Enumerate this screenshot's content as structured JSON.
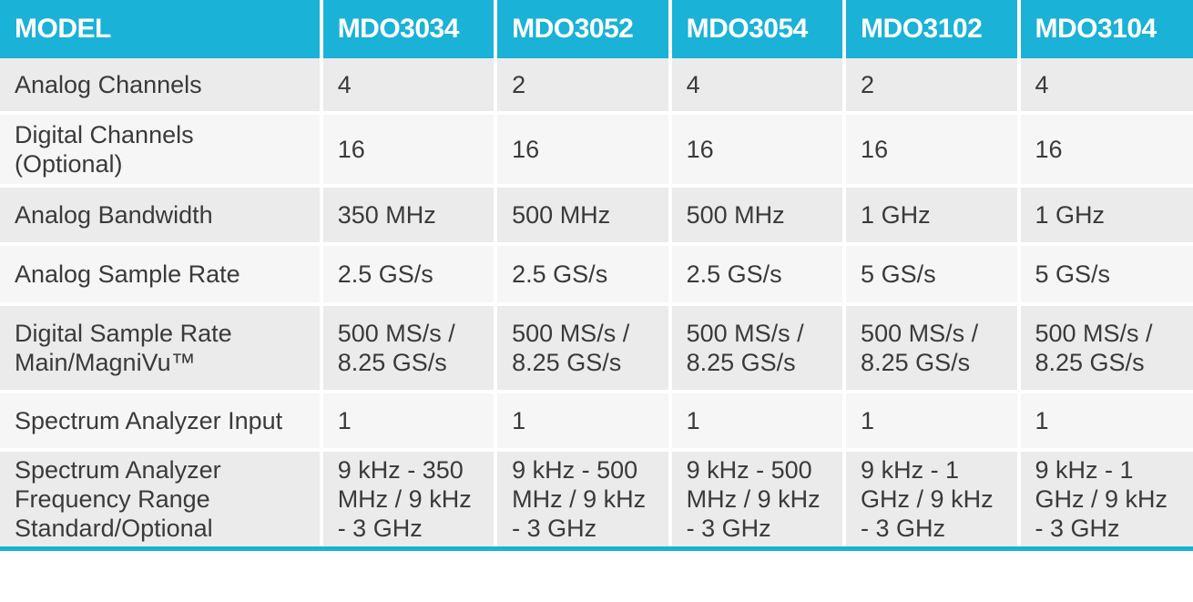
{
  "header": {
    "label": "MODEL",
    "models": [
      "MDO3034",
      "MDO3052",
      "MDO3054",
      "MDO3102",
      "MDO3104"
    ]
  },
  "rows": [
    {
      "label": [
        "Analog Channels"
      ],
      "values": [
        [
          "4"
        ],
        [
          "2"
        ],
        [
          "4"
        ],
        [
          "2"
        ],
        [
          "4"
        ]
      ]
    },
    {
      "label": [
        "Digital Channels",
        "(Optional)"
      ],
      "values": [
        [
          "16"
        ],
        [
          "16"
        ],
        [
          "16"
        ],
        [
          "16"
        ],
        [
          "16"
        ]
      ]
    },
    {
      "label": [
        "Analog Bandwidth"
      ],
      "values": [
        [
          "350 MHz"
        ],
        [
          "500 MHz"
        ],
        [
          "500 MHz"
        ],
        [
          "1 GHz"
        ],
        [
          "1 GHz"
        ]
      ]
    },
    {
      "label": [
        "Analog Sample Rate"
      ],
      "values": [
        [
          "2.5 GS/s"
        ],
        [
          "2.5 GS/s"
        ],
        [
          "2.5 GS/s"
        ],
        [
          "5 GS/s"
        ],
        [
          "5 GS/s"
        ]
      ]
    },
    {
      "label": [
        "Digital Sample Rate",
        "Main/MagniVu™"
      ],
      "values": [
        [
          "500 MS/s /",
          "8.25 GS/s"
        ],
        [
          "500 MS/s /",
          "8.25 GS/s"
        ],
        [
          "500 MS/s /",
          "8.25 GS/s"
        ],
        [
          "500 MS/s /",
          "8.25 GS/s"
        ],
        [
          "500 MS/s /",
          "8.25 GS/s"
        ]
      ]
    },
    {
      "label": [
        "Spectrum Analyzer Input"
      ],
      "values": [
        [
          "1"
        ],
        [
          "1"
        ],
        [
          "1"
        ],
        [
          "1"
        ],
        [
          "1"
        ]
      ]
    },
    {
      "label": [
        "Spectrum Analyzer",
        "Frequency Range",
        "Standard/Optional"
      ],
      "values": [
        [
          "9 kHz - 350",
          "MHz / 9 kHz",
          "- 3 GHz"
        ],
        [
          "9 kHz - 500",
          "MHz / 9 kHz",
          "- 3 GHz"
        ],
        [
          "9 kHz - 500",
          "MHz / 9 kHz",
          "- 3 GHz"
        ],
        [
          "9 kHz - 1",
          "GHz / 9 kHz",
          "- 3 GHz"
        ],
        [
          "9 kHz - 1",
          "GHz / 9 kHz",
          "- 3 GHz"
        ]
      ]
    }
  ],
  "colors": {
    "header_bg": "#1ab2d6",
    "row_odd": "#ebebeb",
    "row_even": "#f6f6f6",
    "text": "#3a3a3a"
  }
}
